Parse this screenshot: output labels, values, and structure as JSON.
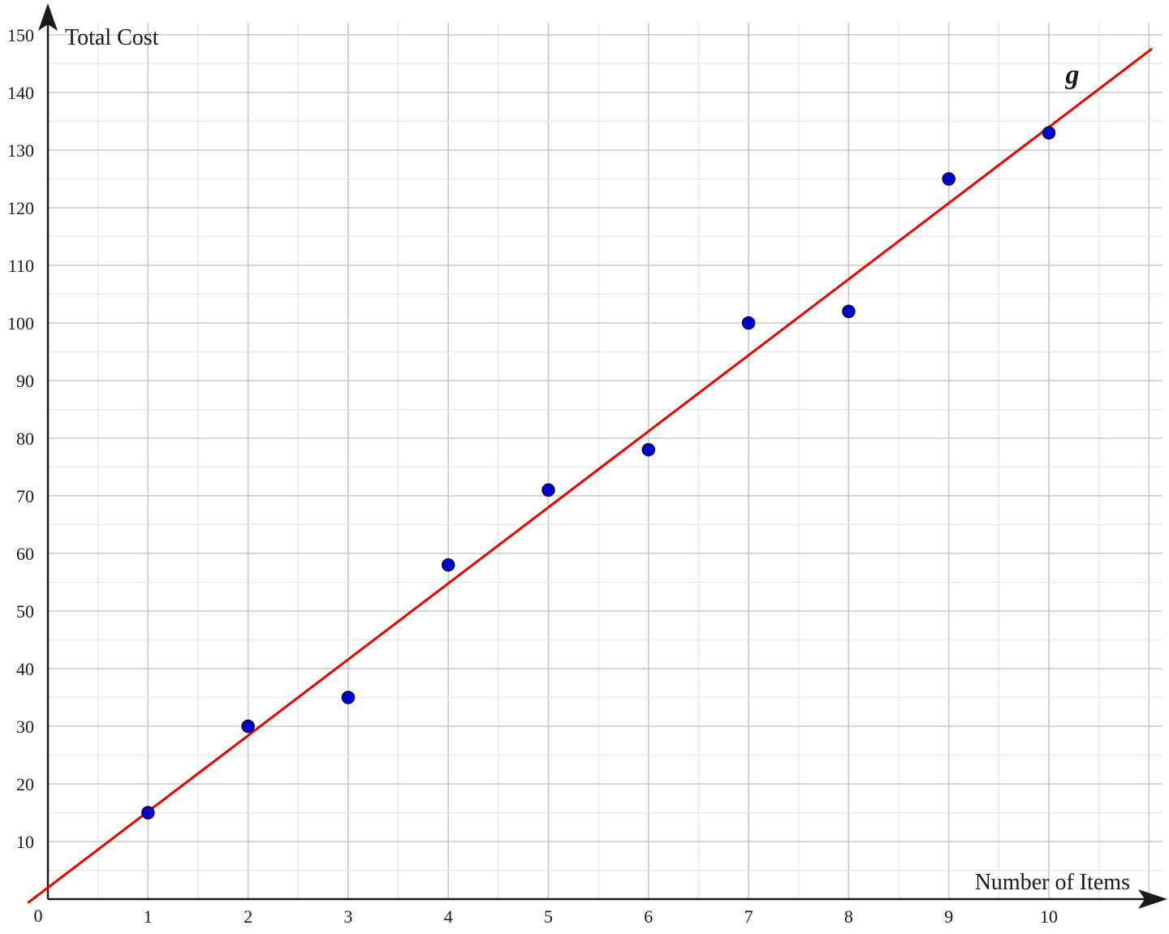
{
  "chart_data": {
    "type": "scatter",
    "xlabel": "Number of Items",
    "ylabel": "Total Cost",
    "x_origin_label": "0",
    "xlim": [
      0,
      11
    ],
    "ylim": [
      0,
      150
    ],
    "x_ticks": [
      "1",
      "2",
      "3",
      "4",
      "5",
      "6",
      "7",
      "8",
      "9",
      "10"
    ],
    "y_ticks": [
      "10",
      "20",
      "30",
      "40",
      "50",
      "60",
      "70",
      "80",
      "90",
      "100",
      "110",
      "120",
      "130",
      "140",
      "150"
    ],
    "x_minor_step": 0.5,
    "y_minor_step": 5,
    "grid": true,
    "series": [
      {
        "marker": "circle",
        "color": "#0000cc",
        "x": [
          1,
          2,
          3,
          4,
          5,
          6,
          7,
          8,
          9,
          10
        ],
        "y": [
          15,
          30,
          35,
          58,
          71,
          78,
          100,
          102,
          125,
          133
        ]
      }
    ],
    "trend_line": {
      "label": "g",
      "color": "#ee0000",
      "slope": 13.2,
      "intercept": 2,
      "x_range": [
        -0.2,
        11.03
      ]
    },
    "colors": {
      "grid_major": "#c8c8c8",
      "grid_minor": "#e6e6e6",
      "axis": "#1a1a1a"
    }
  }
}
